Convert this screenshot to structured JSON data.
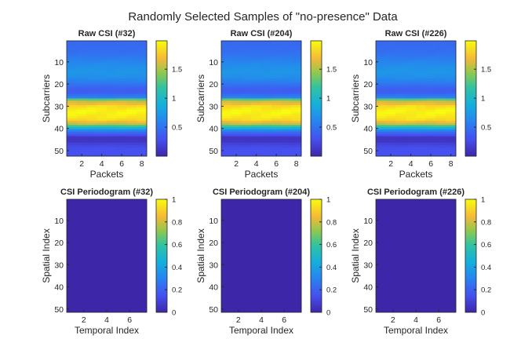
{
  "figure": {
    "title": "Randomly Selected Samples of \"no-presence\" Data"
  },
  "colormap": "parula",
  "chart_data": [
    {
      "type": "heatmap",
      "title": "Raw CSI (#32)",
      "xlabel": "Packets",
      "ylabel": "Subcarriers",
      "x_range": [
        1,
        8
      ],
      "y_range": [
        1,
        52
      ],
      "xticks": [
        2,
        4,
        6,
        8
      ],
      "yticks": [
        10,
        20,
        30,
        40,
        50
      ],
      "clim": [
        0.0,
        1.99
      ],
      "colorbar_ticks": [
        0.5,
        1,
        1.5
      ],
      "row_profile": [
        0.45,
        0.45,
        0.45,
        0.47,
        0.48,
        0.5,
        0.52,
        0.55,
        0.58,
        0.62,
        0.65,
        0.68,
        0.7,
        0.72,
        0.72,
        0.7,
        0.68,
        0.62,
        0.58,
        0.52,
        0.45,
        0.4,
        0.38,
        0.4,
        0.5,
        0.6,
        1.3,
        1.6,
        1.7,
        1.85,
        1.9,
        1.95,
        1.95,
        1.93,
        1.9,
        1.85,
        1.7,
        1.55,
        1.2,
        0.9,
        0.6,
        0.45,
        0.3,
        0.12,
        0.1,
        0.12,
        0.2,
        0.25,
        0.28,
        0.3,
        0.3,
        0.3
      ]
    },
    {
      "type": "heatmap",
      "title": "Raw CSI (#204)",
      "xlabel": "Packets",
      "ylabel": "Subcarriers",
      "x_range": [
        1,
        8
      ],
      "y_range": [
        1,
        52
      ],
      "xticks": [
        2,
        4,
        6,
        8
      ],
      "yticks": [
        10,
        20,
        30,
        40,
        50
      ],
      "clim": [
        0.0,
        1.99
      ],
      "colorbar_ticks": [
        0.5,
        1,
        1.5
      ],
      "row_profile": [
        0.45,
        0.45,
        0.45,
        0.47,
        0.48,
        0.5,
        0.52,
        0.55,
        0.58,
        0.62,
        0.65,
        0.68,
        0.7,
        0.72,
        0.72,
        0.7,
        0.68,
        0.62,
        0.58,
        0.52,
        0.45,
        0.4,
        0.38,
        0.4,
        0.5,
        0.6,
        1.3,
        1.6,
        1.7,
        1.85,
        1.9,
        1.95,
        1.95,
        1.93,
        1.9,
        1.85,
        1.7,
        1.55,
        1.2,
        0.9,
        0.6,
        0.45,
        0.3,
        0.12,
        0.1,
        0.12,
        0.2,
        0.25,
        0.28,
        0.3,
        0.3,
        0.3
      ]
    },
    {
      "type": "heatmap",
      "title": "Raw CSI (#226)",
      "xlabel": "Packets",
      "ylabel": "Subcarriers",
      "x_range": [
        1,
        8
      ],
      "y_range": [
        1,
        52
      ],
      "xticks": [
        2,
        4,
        6,
        8
      ],
      "yticks": [
        10,
        20,
        30,
        40,
        50
      ],
      "clim": [
        0.0,
        1.99
      ],
      "colorbar_ticks": [
        0.5,
        1,
        1.5
      ],
      "row_profile": [
        0.45,
        0.45,
        0.45,
        0.47,
        0.48,
        0.5,
        0.52,
        0.55,
        0.58,
        0.62,
        0.65,
        0.68,
        0.7,
        0.72,
        0.72,
        0.7,
        0.68,
        0.62,
        0.58,
        0.52,
        0.45,
        0.4,
        0.38,
        0.4,
        0.5,
        0.6,
        1.3,
        1.6,
        1.7,
        1.85,
        1.9,
        1.95,
        1.95,
        1.93,
        1.9,
        1.85,
        1.7,
        1.55,
        1.2,
        0.9,
        0.6,
        0.45,
        0.3,
        0.12,
        0.1,
        0.12,
        0.2,
        0.25,
        0.28,
        0.3,
        0.3,
        0.3
      ]
    },
    {
      "type": "heatmap",
      "title": "CSI Periodogram (#32)",
      "xlabel": "Temporal Index",
      "ylabel": "Spatial Index",
      "x_range": [
        1,
        7
      ],
      "y_range": [
        1,
        51
      ],
      "xticks": [
        2,
        4,
        6
      ],
      "yticks": [
        10,
        20,
        30,
        40,
        50
      ],
      "clim": [
        0,
        1
      ],
      "colorbar_ticks": [
        0,
        0.2,
        0.4,
        0.6,
        0.8,
        1
      ],
      "constant_value": 0
    },
    {
      "type": "heatmap",
      "title": "CSI Periodogram (#204)",
      "xlabel": "Temporal Index",
      "ylabel": "Spatial Index",
      "x_range": [
        1,
        7
      ],
      "y_range": [
        1,
        51
      ],
      "xticks": [
        2,
        4,
        6
      ],
      "yticks": [
        10,
        20,
        30,
        40,
        50
      ],
      "clim": [
        0,
        1
      ],
      "colorbar_ticks": [
        0,
        0.2,
        0.4,
        0.6,
        0.8,
        1
      ],
      "constant_value": 0
    },
    {
      "type": "heatmap",
      "title": "CSI Periodogram (#226)",
      "xlabel": "Temporal Index",
      "ylabel": "Spatial Index",
      "x_range": [
        1,
        7
      ],
      "y_range": [
        1,
        51
      ],
      "xticks": [
        2,
        4,
        6
      ],
      "yticks": [
        10,
        20,
        30,
        40,
        50
      ],
      "clim": [
        0,
        1
      ],
      "colorbar_ticks": [
        0,
        0.2,
        0.4,
        0.6,
        0.8,
        1
      ],
      "constant_value": 0
    }
  ]
}
